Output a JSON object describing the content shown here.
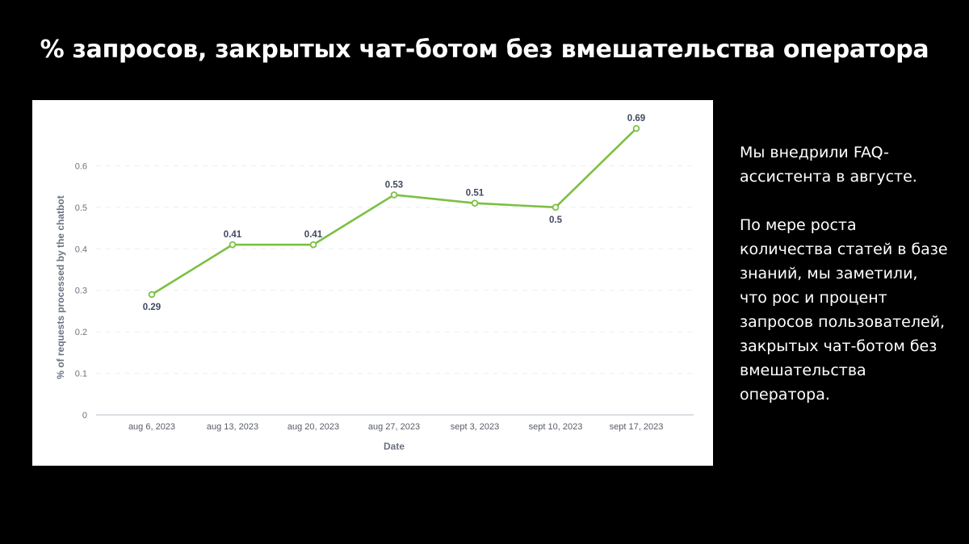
{
  "slide": {
    "title": "% запросов, закрытых чат-ботом без вмешательства оператора",
    "side_paragraphs": [
      "Мы внедрили FAQ-ассистента в августе.",
      "По мере роста количества статей в базе знаний, мы заметили, что рос и процент запросов пользователей, закрытых чат-ботом без вмешательства оператора."
    ]
  },
  "chart_data": {
    "type": "line",
    "title": "",
    "xlabel": "Date",
    "ylabel": "% of requests processed by the chatbot",
    "categories": [
      "aug 6, 2023",
      "aug 13, 2023",
      "aug 20, 2023",
      "aug  27, 2023",
      "sept 3, 2023",
      "sept 10, 2023",
      "sept 17, 2023"
    ],
    "series": [
      {
        "values": [
          0.29,
          0.41,
          0.41,
          0.53,
          0.51,
          0.5,
          0.69
        ],
        "color": "#7cc043"
      }
    ],
    "data_labels": [
      "0.29",
      "0.41",
      "0.41",
      "0.53",
      "0.51",
      "0.5",
      "0.69"
    ],
    "yticks": [
      "0",
      "0.1",
      "0.2",
      "0.3",
      "0.4",
      "0.5",
      "0.6"
    ],
    "ylim": [
      0,
      0.7
    ],
    "grid": true,
    "legend": "none"
  }
}
